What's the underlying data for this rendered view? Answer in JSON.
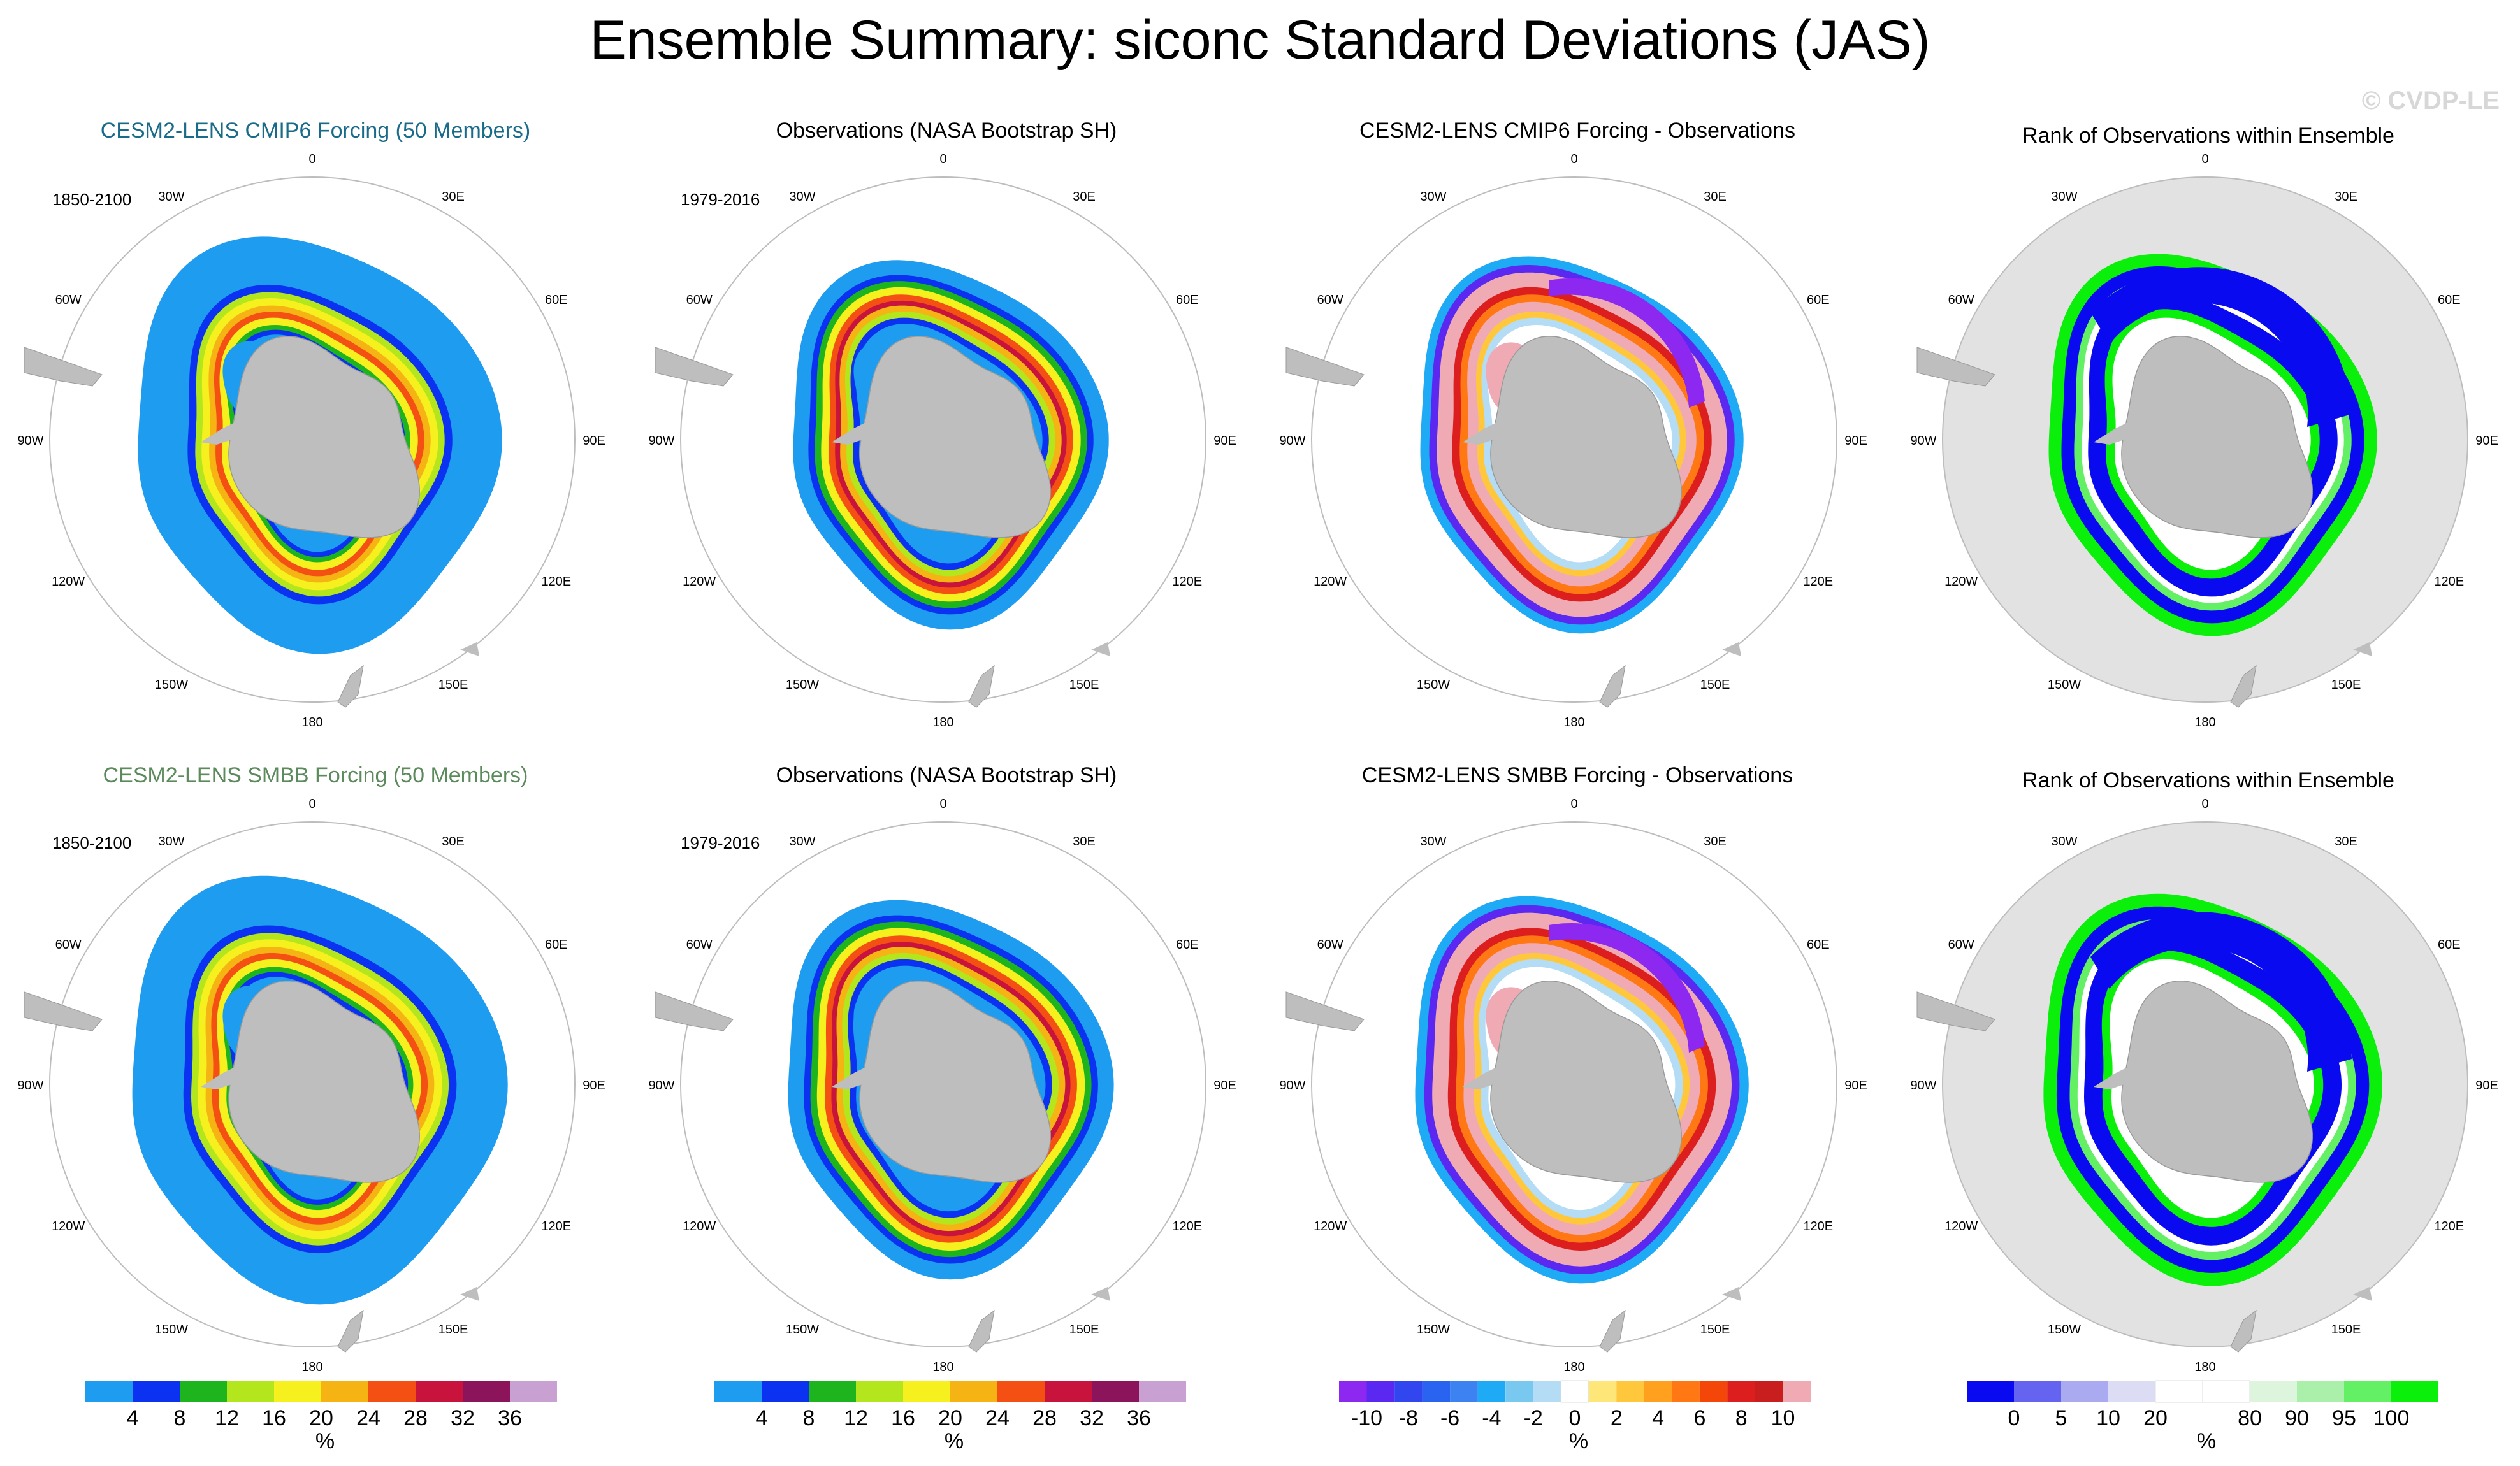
{
  "title": "Ensemble Summary: siconc Standard Deviations (JAS)",
  "credit": "© CVDP-LE",
  "rows": [
    {
      "panels": [
        {
          "title": "CESM2-LENS CMIP6 Forcing (50 Members)",
          "title_color": "#1a6b8a",
          "period": "1850-2100",
          "kind": "sd_model"
        },
        {
          "title": "Observations (NASA Bootstrap SH)",
          "title_color": "#000000",
          "period": "1979-2016",
          "kind": "sd_obs"
        },
        {
          "title": "CESM2-LENS CMIP6 Forcing - Observations",
          "title_color": "#000000",
          "period": "",
          "kind": "diff"
        },
        {
          "title": "Rank of Observations within Ensemble",
          "title_color": "#000000",
          "period": "",
          "kind": "rank"
        }
      ]
    },
    {
      "panels": [
        {
          "title": "CESM2-LENS SMBB Forcing (50 Members)",
          "title_color": "#5c8a5c",
          "period": "1850-2100",
          "kind": "sd_model"
        },
        {
          "title": "Observations (NASA Bootstrap SH)",
          "title_color": "#000000",
          "period": "1979-2016",
          "kind": "sd_obs"
        },
        {
          "title": "CESM2-LENS SMBB Forcing - Observations",
          "title_color": "#000000",
          "period": "",
          "kind": "diff"
        },
        {
          "title": "Rank of Observations within Ensemble",
          "title_color": "#000000",
          "period": "",
          "kind": "rank"
        }
      ]
    }
  ],
  "lon_labels": [
    "0",
    "30E",
    "60E",
    "90E",
    "120E",
    "150E",
    "180",
    "150W",
    "120W",
    "90W",
    "60W",
    "30W"
  ],
  "colorbars": [
    {
      "id": "sd1",
      "colors": [
        "#1e9cf0",
        "#0a32f0",
        "#1eb41e",
        "#b4e61e",
        "#f5f01e",
        "#f5b414",
        "#f55014",
        "#c8143c",
        "#8c145a",
        "#c8a0d2"
      ],
      "labels": [
        "4",
        "8",
        "12",
        "16",
        "20",
        "24",
        "28",
        "32",
        "36"
      ],
      "units": "%"
    },
    {
      "id": "sd2",
      "colors": [
        "#1e9cf0",
        "#0a32f0",
        "#1eb41e",
        "#b4e61e",
        "#f5f01e",
        "#f5b414",
        "#f55014",
        "#c8143c",
        "#8c145a",
        "#c8a0d2"
      ],
      "labels": [
        "4",
        "8",
        "12",
        "16",
        "20",
        "24",
        "28",
        "32",
        "36"
      ],
      "units": "%"
    },
    {
      "id": "diff",
      "colors": [
        "#8c28f0",
        "#5a28f0",
        "#3246f0",
        "#2864f0",
        "#3c82f0",
        "#1eaaf5",
        "#78c8f0",
        "#b4dcf5",
        "#ffffff",
        "#ffe678",
        "#ffc83c",
        "#ffa01e",
        "#ff7814",
        "#f5460a",
        "#dc1e1e",
        "#c81e1e",
        "#f0aab4"
      ],
      "labels": [
        "-10",
        "-8",
        "-6",
        "-4",
        "-2",
        "0",
        "2",
        "4",
        "6",
        "8",
        "10"
      ],
      "units": "%"
    },
    {
      "id": "rank",
      "colors": [
        "#0a0af0",
        "#6464f0",
        "#aaaaf0",
        "#dcdcf5",
        "#ffffff",
        "#ffffff",
        "#dcf5dc",
        "#aaf0aa",
        "#64f064",
        "#0af00a"
      ],
      "labels": [
        "0",
        "5",
        "10",
        "20",
        "80",
        "90",
        "95",
        "100"
      ],
      "units": "%"
    }
  ],
  "palette": {
    "land": "#bebebe",
    "rank_bg": "#e2e2e2"
  }
}
